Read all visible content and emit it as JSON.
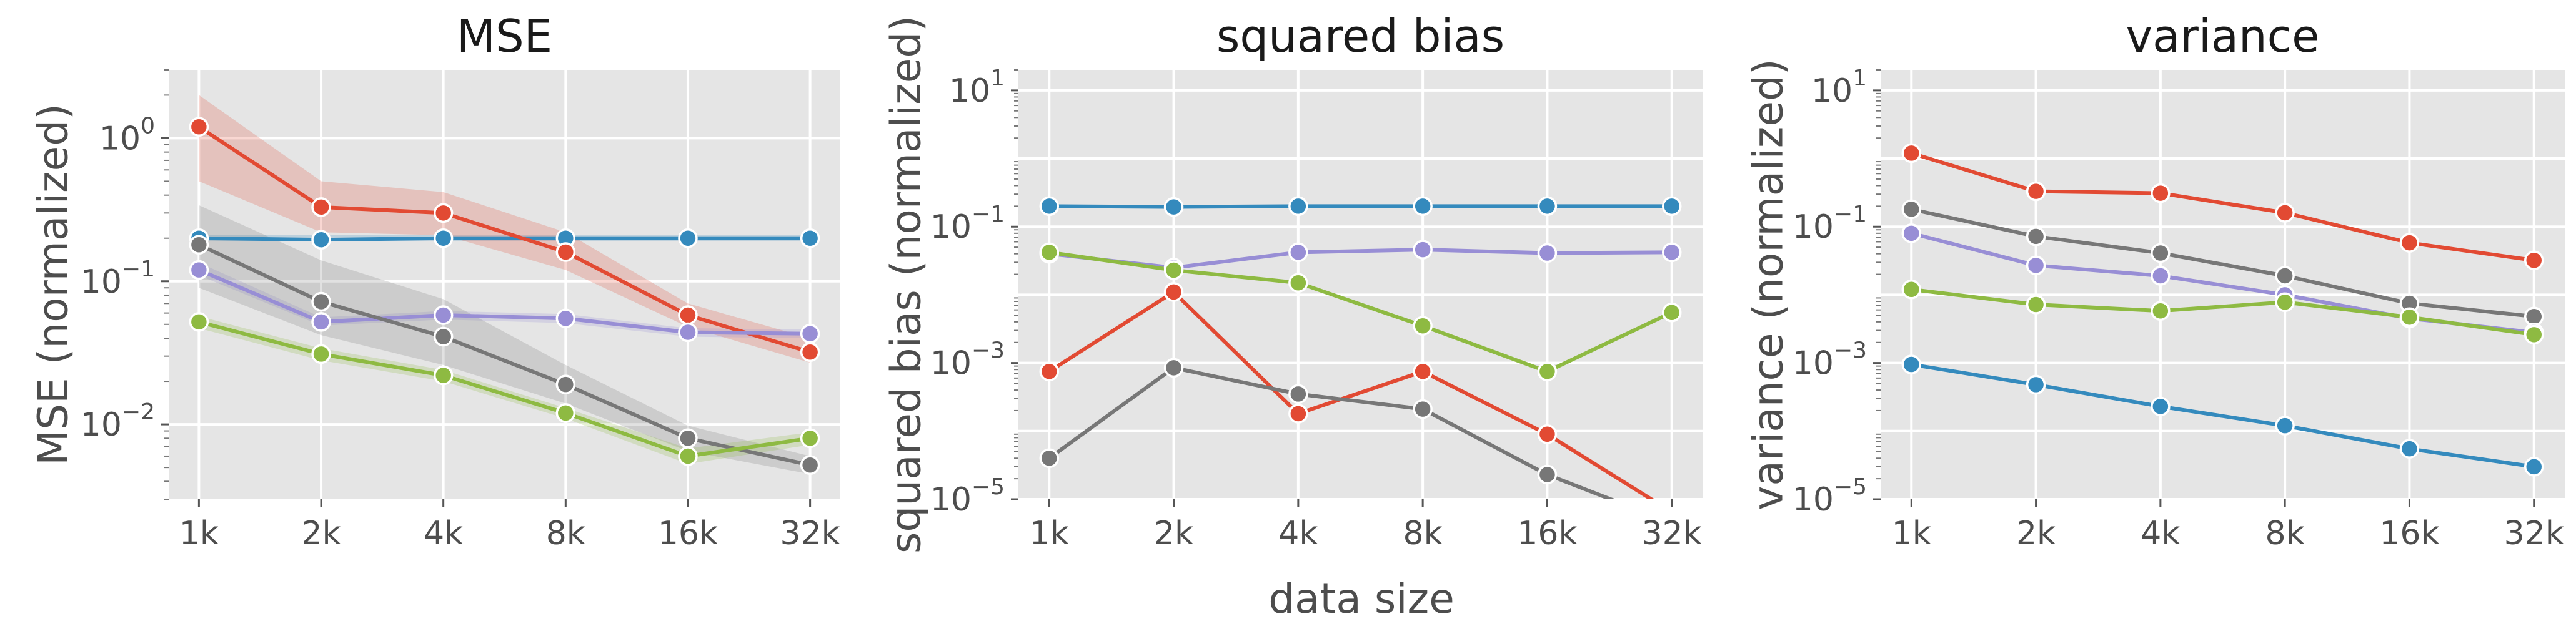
{
  "figure": {
    "xlabel": "data size"
  },
  "colors": {
    "red": "#e24a33",
    "blue": "#348abd",
    "purple": "#988ed5",
    "gray": "#777777",
    "green": "#8eba42"
  },
  "chart_data": [
    {
      "type": "line",
      "title": "MSE",
      "ylabel": "MSE (normalized)",
      "xscale": "log2",
      "yscale": "log",
      "categories": [
        "1k",
        "2k",
        "4k",
        "8k",
        "16k",
        "32k"
      ],
      "ylim": [
        0.003,
        3.0
      ],
      "yticks": [
        {
          "base": "10",
          "exp": "0",
          "value": 1
        },
        {
          "base": "10",
          "exp": "−1",
          "value": 0.1
        },
        {
          "base": "10",
          "exp": "−2",
          "value": 0.01
        }
      ],
      "grid": true,
      "series": [
        {
          "color": "blue",
          "values": [
            0.2,
            0.195,
            0.2,
            0.2,
            0.2,
            0.2
          ],
          "band_low": [
            0.19,
            0.19,
            0.19,
            0.19,
            0.19,
            0.19
          ],
          "band_high": [
            0.21,
            0.21,
            0.21,
            0.21,
            0.21,
            0.21
          ]
        },
        {
          "color": "red",
          "values": [
            1.2,
            0.33,
            0.3,
            0.16,
            0.058,
            0.032
          ],
          "band_low": [
            0.5,
            0.22,
            0.21,
            0.12,
            0.048,
            0.027
          ],
          "band_high": [
            2.0,
            0.5,
            0.42,
            0.22,
            0.07,
            0.04
          ]
        },
        {
          "color": "purple",
          "values": [
            0.12,
            0.052,
            0.058,
            0.055,
            0.044,
            0.043
          ],
          "band_low": [
            0.11,
            0.049,
            0.054,
            0.051,
            0.041,
            0.04
          ],
          "band_high": [
            0.135,
            0.056,
            0.062,
            0.059,
            0.047,
            0.046
          ]
        },
        {
          "color": "gray",
          "values": [
            0.18,
            0.072,
            0.041,
            0.019,
            0.008,
            0.0052
          ],
          "band_low": [
            0.09,
            0.042,
            0.026,
            0.014,
            0.0065,
            0.0045
          ],
          "band_high": [
            0.34,
            0.14,
            0.075,
            0.026,
            0.0098,
            0.006
          ]
        },
        {
          "color": "green",
          "values": [
            0.052,
            0.031,
            0.022,
            0.012,
            0.006,
            0.008
          ],
          "band_low": [
            0.047,
            0.028,
            0.02,
            0.011,
            0.0053,
            0.0072
          ],
          "band_high": [
            0.057,
            0.034,
            0.024,
            0.013,
            0.0068,
            0.0088
          ]
        }
      ]
    },
    {
      "type": "line",
      "title": "squared bias",
      "ylabel": "squared bias (normalized)",
      "xscale": "log2",
      "yscale": "log",
      "categories": [
        "1k",
        "2k",
        "4k",
        "8k",
        "16k",
        "32k"
      ],
      "ylim": [
        1e-05,
        20
      ],
      "yticks": [
        {
          "base": "10",
          "exp": "1",
          "value": 10
        },
        {
          "base": "10",
          "exp": "−1",
          "value": 0.1
        },
        {
          "base": "10",
          "exp": "−3",
          "value": 0.001
        },
        {
          "base": "10",
          "exp": "−5",
          "value": 1e-05
        }
      ],
      "grid": true,
      "series": [
        {
          "color": "blue",
          "values": [
            0.2,
            0.195,
            0.2,
            0.2,
            0.2,
            0.2
          ]
        },
        {
          "color": "purple",
          "values": [
            0.04,
            0.025,
            0.042,
            0.046,
            0.041,
            0.042
          ]
        },
        {
          "color": "green",
          "values": [
            0.042,
            0.023,
            0.015,
            0.0035,
            0.00075,
            0.0055
          ]
        },
        {
          "color": "red",
          "values": [
            0.00075,
            0.011,
            0.00018,
            0.00075,
            9e-05,
            6.5e-06
          ]
        },
        {
          "color": "gray",
          "values": [
            4e-05,
            0.00085,
            0.00035,
            0.00021,
            2.3e-05,
            4.5e-06
          ]
        }
      ]
    },
    {
      "type": "line",
      "title": "variance",
      "ylabel": "variance (normalized)",
      "xscale": "log2",
      "yscale": "log",
      "categories": [
        "1k",
        "2k",
        "4k",
        "8k",
        "16k",
        "32k"
      ],
      "ylim": [
        1e-05,
        20
      ],
      "yticks": [
        {
          "base": "10",
          "exp": "1",
          "value": 10
        },
        {
          "base": "10",
          "exp": "−1",
          "value": 0.1
        },
        {
          "base": "10",
          "exp": "−3",
          "value": 0.001
        },
        {
          "base": "10",
          "exp": "−5",
          "value": 1e-05
        }
      ],
      "grid": true,
      "series": [
        {
          "color": "red",
          "values": [
            1.2,
            0.33,
            0.31,
            0.16,
            0.058,
            0.032
          ]
        },
        {
          "color": "gray",
          "values": [
            0.18,
            0.072,
            0.041,
            0.019,
            0.0075,
            0.0048
          ]
        },
        {
          "color": "purple",
          "values": [
            0.08,
            0.027,
            0.019,
            0.01,
            0.0045,
            0.0028
          ]
        },
        {
          "color": "green",
          "values": [
            0.012,
            0.0072,
            0.0058,
            0.0078,
            0.0047,
            0.0026
          ]
        },
        {
          "color": "blue",
          "values": [
            0.00095,
            0.00048,
            0.00023,
            0.00012,
            5.5e-05,
            3e-05
          ]
        }
      ]
    }
  ]
}
